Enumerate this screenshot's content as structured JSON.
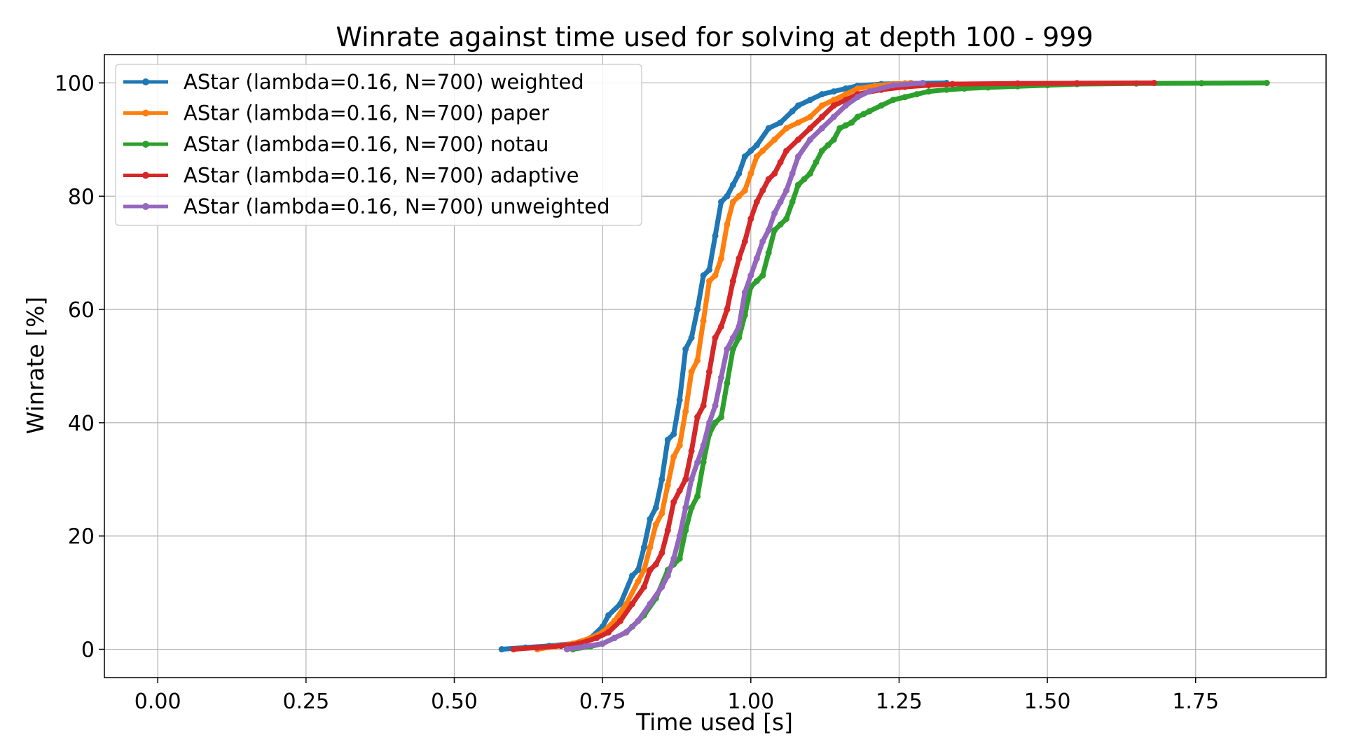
{
  "chart_data": {
    "type": "line",
    "title": "Winrate against time used for solving at depth 100 - 999",
    "xlabel": "Time used [s]",
    "ylabel": "Winrate [%]",
    "xlim": [
      -0.09,
      1.97
    ],
    "ylim": [
      -5,
      105
    ],
    "xticks": [
      0.0,
      0.25,
      0.5,
      0.75,
      1.0,
      1.25,
      1.5,
      1.75
    ],
    "xtick_labels": [
      "0.00",
      "0.25",
      "0.50",
      "0.75",
      "1.00",
      "1.25",
      "1.50",
      "1.75"
    ],
    "yticks": [
      0,
      20,
      40,
      60,
      80,
      100
    ],
    "ytick_labels": [
      "0",
      "20",
      "40",
      "60",
      "80",
      "100"
    ],
    "grid": true,
    "legend": "top-left",
    "series": [
      {
        "name": "AStar (lambda=0.16, N=700) weighted",
        "color": "#1f77b4",
        "x": [
          0.58,
          0.62,
          0.66,
          0.7,
          0.73,
          0.75,
          0.76,
          0.78,
          0.8,
          0.81,
          0.82,
          0.83,
          0.84,
          0.85,
          0.86,
          0.87,
          0.88,
          0.89,
          0.9,
          0.91,
          0.92,
          0.93,
          0.94,
          0.95,
          0.96,
          0.97,
          0.98,
          0.99,
          1.0,
          1.01,
          1.03,
          1.05,
          1.07,
          1.08,
          1.1,
          1.12,
          1.14,
          1.16,
          1.18,
          1.22,
          1.26,
          1.33
        ],
        "y": [
          0,
          0.3,
          0.6,
          1,
          2,
          4,
          6,
          8,
          13,
          14,
          18,
          23,
          25,
          30,
          37,
          38,
          44,
          53,
          55,
          60,
          66,
          67,
          73,
          79,
          80,
          82,
          84,
          87,
          88,
          89,
          92,
          93,
          95,
          96,
          97,
          98,
          98.5,
          99,
          99.5,
          99.8,
          99.9,
          100
        ]
      },
      {
        "name": "AStar (lambda=0.16, N=700) paper",
        "color": "#ff7f0e",
        "x": [
          0.64,
          0.67,
          0.7,
          0.73,
          0.75,
          0.77,
          0.79,
          0.81,
          0.82,
          0.83,
          0.84,
          0.85,
          0.86,
          0.87,
          0.88,
          0.89,
          0.9,
          0.91,
          0.92,
          0.93,
          0.94,
          0.95,
          0.96,
          0.97,
          0.98,
          0.99,
          1.0,
          1.01,
          1.02,
          1.04,
          1.06,
          1.08,
          1.1,
          1.12,
          1.14,
          1.16,
          1.18,
          1.21,
          1.24,
          1.27
        ],
        "y": [
          0,
          0.5,
          1,
          2,
          3,
          5,
          8,
          12,
          14,
          18,
          22,
          24,
          29,
          34,
          36,
          42,
          49,
          51,
          58,
          65,
          66,
          69,
          75,
          79,
          80,
          81,
          84,
          87,
          88,
          90,
          92,
          93,
          94,
          96,
          97,
          98,
          99,
          99.5,
          99.8,
          100
        ]
      },
      {
        "name": "AStar (lambda=0.16, N=700) notau",
        "color": "#2ca02c",
        "x": [
          0.7,
          0.73,
          0.75,
          0.77,
          0.79,
          0.8,
          0.82,
          0.84,
          0.86,
          0.87,
          0.88,
          0.89,
          0.9,
          0.91,
          0.92,
          0.93,
          0.94,
          0.95,
          0.96,
          0.97,
          0.98,
          0.99,
          1.0,
          1.01,
          1.02,
          1.03,
          1.04,
          1.05,
          1.06,
          1.07,
          1.08,
          1.09,
          1.1,
          1.11,
          1.12,
          1.13,
          1.14,
          1.15,
          1.16,
          1.17,
          1.18,
          1.19,
          1.2,
          1.22,
          1.24,
          1.26,
          1.28,
          1.3,
          1.33,
          1.36,
          1.4,
          1.45,
          1.5,
          1.55,
          1.65,
          1.76,
          1.87
        ],
        "y": [
          0,
          0.5,
          1,
          2,
          3,
          4,
          6,
          9,
          14,
          15,
          16,
          21,
          25,
          27,
          33,
          38,
          40,
          41,
          47,
          53,
          55,
          59,
          64,
          65,
          66,
          70,
          74,
          75,
          76,
          79,
          82,
          83,
          84,
          86,
          88,
          89,
          90,
          92,
          92.5,
          93,
          94,
          94.5,
          95,
          96,
          97,
          97.5,
          98,
          98.5,
          98.8,
          99,
          99.2,
          99.4,
          99.6,
          99.8,
          99.9,
          99.95,
          100
        ]
      },
      {
        "name": "AStar (lambda=0.16, N=700) adaptive",
        "color": "#d62728",
        "x": [
          0.6,
          0.64,
          0.68,
          0.71,
          0.74,
          0.76,
          0.78,
          0.8,
          0.82,
          0.83,
          0.84,
          0.85,
          0.86,
          0.87,
          0.88,
          0.89,
          0.9,
          0.91,
          0.92,
          0.93,
          0.94,
          0.95,
          0.96,
          0.97,
          0.98,
          0.99,
          1.0,
          1.01,
          1.02,
          1.03,
          1.04,
          1.05,
          1.06,
          1.08,
          1.1,
          1.12,
          1.14,
          1.16,
          1.18,
          1.22,
          1.26,
          1.3,
          1.34,
          1.45,
          1.55,
          1.68
        ],
        "y": [
          0,
          0.3,
          0.6,
          1,
          2,
          3,
          5,
          8,
          11,
          14,
          15,
          17,
          21,
          26,
          28,
          30,
          35,
          41,
          43,
          49,
          55,
          57,
          60,
          65,
          69,
          72,
          76,
          79,
          81,
          83,
          84,
          86,
          88,
          90,
          92,
          94,
          96,
          97,
          98,
          98.8,
          99.3,
          99.6,
          99.8,
          99.9,
          99.95,
          100
        ]
      },
      {
        "name": "AStar (lambda=0.16, N=700) unweighted",
        "color": "#9467bd",
        "x": [
          0.69,
          0.72,
          0.75,
          0.77,
          0.79,
          0.81,
          0.83,
          0.85,
          0.86,
          0.87,
          0.88,
          0.89,
          0.9,
          0.91,
          0.92,
          0.93,
          0.94,
          0.95,
          0.96,
          0.97,
          0.98,
          0.99,
          1.0,
          1.01,
          1.02,
          1.03,
          1.04,
          1.05,
          1.06,
          1.07,
          1.08,
          1.1,
          1.12,
          1.14,
          1.16,
          1.18,
          1.2,
          1.24,
          1.29
        ],
        "y": [
          0,
          0.5,
          1,
          2,
          3,
          5,
          8,
          11,
          13,
          16,
          20,
          25,
          30,
          33,
          36,
          40,
          43,
          48,
          53,
          55,
          57,
          63,
          66,
          69,
          72,
          74,
          77,
          79,
          81,
          84,
          87,
          90,
          92,
          94,
          96,
          97.5,
          98.5,
          99.6,
          100
        ]
      }
    ]
  }
}
